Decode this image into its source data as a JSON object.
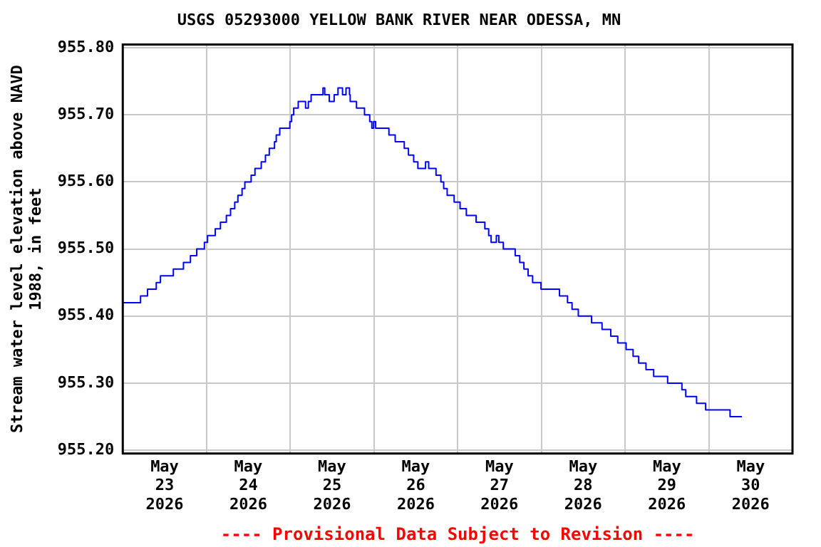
{
  "chart_data": {
    "type": "step",
    "title": "USGS 05293000 YELLOW BANK RIVER NEAR ODESSA, MN",
    "ylabel": "Stream water level elevation above NAVD 1988, in feet",
    "annotations": [
      "---- Provisional Data Subject to Revision ----"
    ],
    "x": [
      "2026-05-23T00:00",
      "2026-05-23T05:06",
      "2026-05-23T07:06",
      "2026-05-23T09:36",
      "2026-05-23T10:48",
      "2026-05-23T14:30",
      "2026-05-23T17:24",
      "2026-05-23T19:24",
      "2026-05-23T21:12",
      "2026-05-23T23:24",
      "2026-05-24T00:18",
      "2026-05-24T02:30",
      "2026-05-24T04:00",
      "2026-05-24T05:42",
      "2026-05-24T06:54",
      "2026-05-24T08:06",
      "2026-05-24T09:00",
      "2026-05-24T10:12",
      "2026-05-24T11:00",
      "2026-05-24T12:48",
      "2026-05-24T13:54",
      "2026-05-24T15:42",
      "2026-05-24T16:54",
      "2026-05-24T18:00",
      "2026-05-24T19:30",
      "2026-05-24T20:00",
      "2026-05-24T21:00",
      "2026-05-24T23:54",
      "2026-05-25T00:24",
      "2026-05-25T01:00",
      "2026-05-25T02:18",
      "2026-05-25T04:24",
      "2026-05-25T05:12",
      "2026-05-25T06:00",
      "2026-05-25T09:24",
      "2026-05-25T09:54",
      "2026-05-25T11:12",
      "2026-05-25T12:36",
      "2026-05-25T13:42",
      "2026-05-25T15:00",
      "2026-05-25T16:00",
      "2026-05-25T17:00",
      "2026-05-25T17:12",
      "2026-05-25T19:00",
      "2026-05-25T21:18",
      "2026-05-25T22:48",
      "2026-05-25T23:24",
      "2026-05-25T23:54",
      "2026-05-26T00:30",
      "2026-05-26T04:18",
      "2026-05-26T06:06",
      "2026-05-26T08:42",
      "2026-05-26T09:54",
      "2026-05-26T11:24",
      "2026-05-26T12:36",
      "2026-05-26T14:48",
      "2026-05-26T15:42",
      "2026-05-26T17:48",
      "2026-05-26T19:12",
      "2026-05-26T20:00",
      "2026-05-26T21:00",
      "2026-05-26T23:00",
      "2026-05-27T00:42",
      "2026-05-27T02:30",
      "2026-05-27T05:18",
      "2026-05-27T07:48",
      "2026-05-27T08:54",
      "2026-05-27T09:36",
      "2026-05-27T11:06",
      "2026-05-27T11:48",
      "2026-05-27T13:06",
      "2026-05-27T16:30",
      "2026-05-27T17:48",
      "2026-05-27T19:00",
      "2026-05-27T20:12",
      "2026-05-27T21:30",
      "2026-05-27T23:54",
      "2026-05-28T05:12",
      "2026-05-28T07:30",
      "2026-05-28T08:48",
      "2026-05-28T10:36",
      "2026-05-28T14:24",
      "2026-05-28T17:24",
      "2026-05-28T19:54",
      "2026-05-28T21:54",
      "2026-05-29T00:18",
      "2026-05-29T02:18",
      "2026-05-29T03:54",
      "2026-05-29T06:00",
      "2026-05-29T08:12",
      "2026-05-29T12:12",
      "2026-05-29T16:18",
      "2026-05-29T17:24",
      "2026-05-29T20:30",
      "2026-05-29T23:06",
      "2026-05-30T06:06",
      "2026-05-30T09:30"
    ],
    "series": [
      {
        "color": "#0000ff",
        "values": [
          955.42,
          955.43,
          955.44,
          955.45,
          955.46,
          955.47,
          955.48,
          955.49,
          955.5,
          955.51,
          955.52,
          955.53,
          955.54,
          955.55,
          955.56,
          955.57,
          955.58,
          955.59,
          955.6,
          955.61,
          955.62,
          955.63,
          955.64,
          955.65,
          955.66,
          955.67,
          955.68,
          955.69,
          955.7,
          955.71,
          955.72,
          955.71,
          955.72,
          955.73,
          955.74,
          955.73,
          955.72,
          955.73,
          955.74,
          955.73,
          955.74,
          955.73,
          955.72,
          955.71,
          955.7,
          955.69,
          955.68,
          955.69,
          955.68,
          955.67,
          955.66,
          955.65,
          955.64,
          955.63,
          955.62,
          955.63,
          955.62,
          955.61,
          955.6,
          955.59,
          955.58,
          955.57,
          955.56,
          955.55,
          955.54,
          955.53,
          955.52,
          955.51,
          955.52,
          955.51,
          955.5,
          955.49,
          955.48,
          955.47,
          955.46,
          955.45,
          955.44,
          955.43,
          955.42,
          955.41,
          955.4,
          955.39,
          955.38,
          955.37,
          955.36,
          955.35,
          955.34,
          955.33,
          955.32,
          955.31,
          955.3,
          955.29,
          955.28,
          955.27,
          955.26,
          955.25,
          955.25
        ]
      }
    ],
    "xlim": [
      "2026-05-23T00:00",
      "2026-05-31T00:00"
    ],
    "xticks": [
      {
        "value": "2026-05-23T12:00",
        "label": "May 23 2026"
      },
      {
        "value": "2026-05-24T00:00",
        "label": null
      },
      {
        "value": "2026-05-24T12:00",
        "label": "May 24 2026"
      },
      {
        "value": "2026-05-25T00:00",
        "label": null
      },
      {
        "value": "2026-05-25T12:00",
        "label": "May 25 2026"
      },
      {
        "value": "2026-05-26T00:00",
        "label": null
      },
      {
        "value": "2026-05-26T12:00",
        "label": "May 26 2026"
      },
      {
        "value": "2026-05-27T00:00",
        "label": null
      },
      {
        "value": "2026-05-27T12:00",
        "label": "May 27 2026"
      },
      {
        "value": "2026-05-28T00:00",
        "label": null
      },
      {
        "value": "2026-05-28T12:00",
        "label": "May 28 2026"
      },
      {
        "value": "2026-05-29T00:00",
        "label": null
      },
      {
        "value": "2026-05-29T12:00",
        "label": "May 29 2026"
      },
      {
        "value": "2026-05-30T00:00",
        "label": null
      },
      {
        "value": "2026-05-30T12:00",
        "label": "May 30 2026"
      }
    ],
    "ylim": [
      955.195,
      955.805
    ],
    "yticks": [
      {
        "value": 955.2,
        "label": "955.20"
      },
      {
        "value": 955.3,
        "label": "955.30"
      },
      {
        "value": 955.4,
        "label": "955.40"
      },
      {
        "value": 955.5,
        "label": "955.50"
      },
      {
        "value": 955.6,
        "label": "955.60"
      },
      {
        "value": 955.7,
        "label": "955.70"
      },
      {
        "value": 955.8,
        "label": "955.80"
      }
    ],
    "grid": true,
    "legend": false
  }
}
